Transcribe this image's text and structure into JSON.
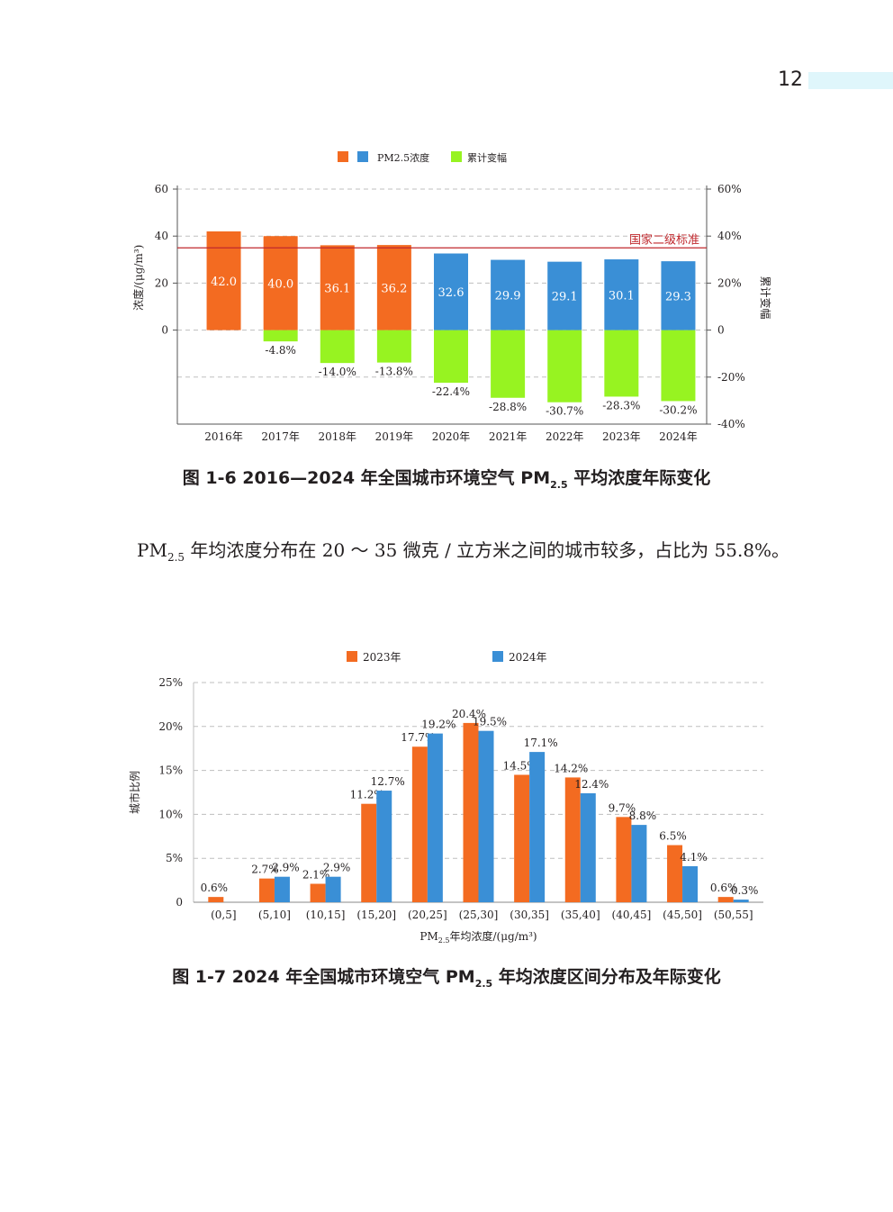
{
  "page_number": "12",
  "figure1": {
    "caption_prefix": "图 1-6  2016—2024 年全国城市环境空气 PM",
    "caption_sub": "2.5",
    "caption_suffix": " 平均浓度年际变化"
  },
  "paragraph": {
    "prefix": "PM",
    "sub": "2.5",
    "text": " 年均浓度分布在 20 ～ 35 微克 / 立方米之间的城市较多，占比为 55.8%。"
  },
  "figure2": {
    "caption_prefix": "图 1-7  2024 年全国城市环境空气 PM",
    "caption_sub": "2.5",
    "caption_suffix": " 年均浓度区间分布及年际变化"
  },
  "colors": {
    "orange": "#f36b21",
    "blue": "#3a8fd6",
    "green": "#97f321",
    "standard_line": "#c0282d"
  },
  "chart_data": [
    {
      "type": "bar",
      "categories": [
        "2016年",
        "2017年",
        "2018年",
        "2019年",
        "2020年",
        "2021年",
        "2022年",
        "2023年",
        "2024年"
      ],
      "series": [
        {
          "name": "PM2.5浓度",
          "axis": "left",
          "values": [
            42.0,
            40.0,
            36.1,
            36.2,
            32.6,
            29.9,
            29.1,
            30.1,
            29.3
          ],
          "labels": [
            "42.0",
            "40.0",
            "36.1",
            "36.2",
            "32.6",
            "29.9",
            "29.1",
            "30.1",
            "29.3"
          ]
        },
        {
          "name": "累计变幅",
          "axis": "right",
          "values": [
            null,
            -4.8,
            -14.0,
            -13.8,
            -22.4,
            -28.8,
            -30.7,
            -28.3,
            -30.2
          ],
          "labels": [
            "",
            "-4.8%",
            "-14.0%",
            "-13.8%",
            "-22.4%",
            "-28.8%",
            "-30.7%",
            "-28.3%",
            "-30.2%"
          ]
        }
      ],
      "legend": [
        "PM2.5浓度",
        "累计变幅"
      ],
      "legend_position": "top",
      "ylabel": "浓度/(μg/m³)",
      "y2label": "累计变幅",
      "ylim": [
        -40,
        60
      ],
      "y_ticks": [
        "60",
        "40",
        "20",
        "0"
      ],
      "y_tick_values": [
        60,
        40,
        20,
        0
      ],
      "y2lim": [
        -40,
        60
      ],
      "y2_ticks": [
        "60%",
        "40%",
        "20%",
        "0",
        "-20%",
        "-40%"
      ],
      "y2_tick_values": [
        60,
        40,
        20,
        0,
        -20,
        -40
      ],
      "reference_line": {
        "value": 35,
        "label": "国家二级标准"
      },
      "grid": "dashed horizontal"
    },
    {
      "type": "bar",
      "categories": [
        "(0,5]",
        "(5,10]",
        "(10,15]",
        "(15,20]",
        "(20,25]",
        "(25,30]",
        "(30,35]",
        "(35,40]",
        "(40,45]",
        "(45,50]",
        "(50,55]"
      ],
      "series": [
        {
          "name": "2023年",
          "values": [
            0.6,
            2.7,
            2.1,
            11.2,
            17.7,
            20.4,
            14.5,
            14.2,
            9.7,
            6.5,
            0.6
          ],
          "labels": [
            "0.6%",
            "2.7%",
            "2.1%",
            "11.2%",
            "17.7%",
            "20.4%",
            "14.5%",
            "14.2%",
            "9.7%",
            "6.5%",
            "0.6%"
          ]
        },
        {
          "name": "2024年",
          "values": [
            null,
            2.9,
            2.9,
            12.7,
            19.2,
            19.5,
            17.1,
            12.4,
            8.8,
            4.1,
            0.3
          ],
          "labels": [
            "",
            "2.9%",
            "2.9%",
            "12.7%",
            "19.2%",
            "19.5%",
            "17.1%",
            "12.4%",
            "8.8%",
            "4.1%",
            "0.3%"
          ]
        }
      ],
      "legend_position": "top",
      "xlabel_prefix": "PM",
      "xlabel_sub": "2.5",
      "xlabel_suffix": "年均浓度/(μg/m³)",
      "ylabel": "城市比例",
      "ylim": [
        0,
        25
      ],
      "y_ticks": [
        "25%",
        "20%",
        "15%",
        "10%",
        "5%",
        "0"
      ],
      "y_tick_values": [
        25,
        20,
        15,
        10,
        5,
        0
      ],
      "grid": "dashed horizontal"
    }
  ]
}
